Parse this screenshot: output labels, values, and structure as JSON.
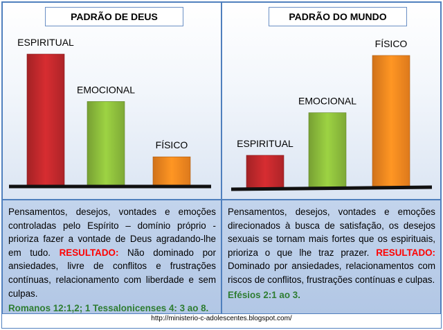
{
  "chart_data": [
    {
      "type": "bar",
      "title": "PADRÃO DE DEUS",
      "categories": [
        "ESPIRITUAL",
        "EMOCIONAL",
        "FÍSICO"
      ],
      "values": [
        100,
        64,
        22
      ],
      "colors": [
        "#c0282c",
        "#8cbc3c",
        "#f5861f"
      ],
      "ylim": [
        0,
        100
      ],
      "xlabel": "",
      "ylabel": "",
      "grid": false,
      "legend": "none"
    },
    {
      "type": "bar",
      "title": "PADRÃO DO MUNDO",
      "categories": [
        "ESPIRITUAL",
        "EMOCIONAL",
        "FÍSICO"
      ],
      "values": [
        25,
        57,
        100
      ],
      "colors": [
        "#c0282c",
        "#8cbc3c",
        "#f5861f"
      ],
      "ylim": [
        0,
        100
      ],
      "xlabel": "",
      "ylabel": "",
      "grid": false,
      "legend": "none"
    }
  ],
  "left_text": {
    "body": "Pensamentos, desejos, vontades e emoções controladas pelo Espírito – domínio próprio - prioriza fazer a vontade de Deus agradando-lhe em tudo.",
    "result_label": "RESULTADO:",
    "result_text": "Não dominado por ansiedades, livre de conflitos e frustrações contínuas, relacionamento com liberdade e sem culpas.",
    "reference": "Romanos 12:1,2; 1 Tessalonicenses 4: 3 ao 8."
  },
  "right_text": {
    "body": "Pensamentos, desejos, vontades e emoções direcionados à busca de satisfação, os desejos sexuais se tornam mais fortes que os espirituais, prioriza o que lhe traz prazer.",
    "result_label": "RESULTADO:",
    "result_text": "Dominado por ansiedades, relacionamentos com riscos de conflitos, frustrações contínuas e culpas.",
    "reference": "Efésios 2:1 ao 3."
  },
  "footer_url": "http://ministerio-c-adolescentes.blogspot.com/"
}
